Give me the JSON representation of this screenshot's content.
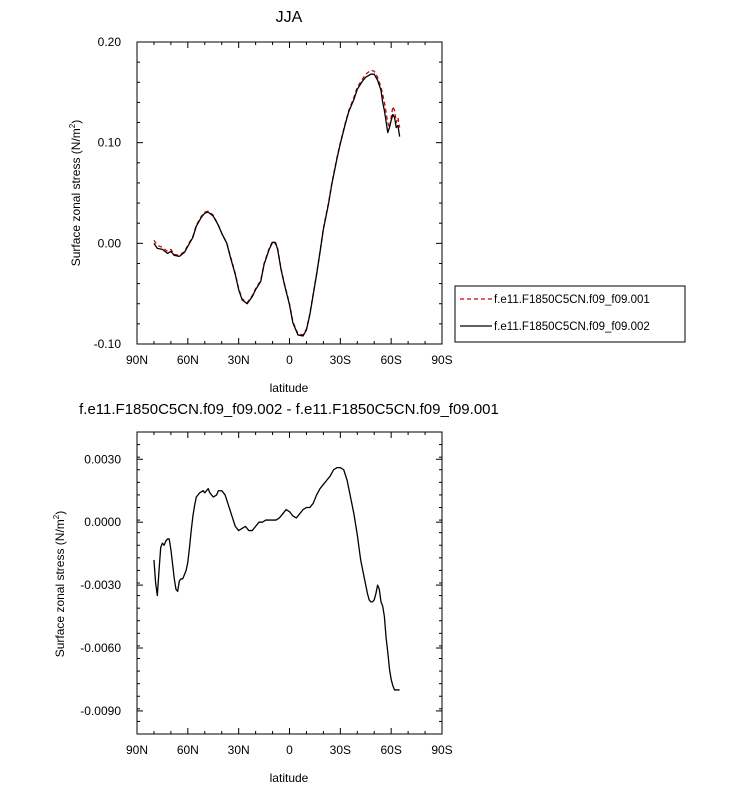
{
  "chart_data": [
    {
      "type": "line",
      "title": "JJA",
      "xlabel": "latitude",
      "ylabel": "Surface zonal stress (N/m",
      "ylabel_sup": "2",
      "ylabel_close": ")",
      "xlim": [
        90,
        -90
      ],
      "ylim": [
        -0.1,
        0.2
      ],
      "xticks": [
        90,
        60,
        30,
        0,
        -30,
        -60,
        -90
      ],
      "xtick_labels": [
        "90N",
        "60N",
        "30N",
        "0",
        "30S",
        "60S",
        "90S"
      ],
      "yticks": [
        -0.1,
        0.0,
        0.1,
        0.2
      ],
      "ytick_labels": [
        "-0.10",
        "0.00",
        "0.10",
        "0.20"
      ],
      "legend": "right",
      "series": [
        {
          "name": "f.e11.F1850C5CN.f09_f09.001",
          "color": "#cc0000",
          "dash": "dashed",
          "x": [
            80,
            78,
            75,
            72,
            70,
            68,
            65,
            62,
            60,
            57,
            55,
            52,
            50,
            48,
            45,
            42,
            40,
            37,
            35,
            32,
            30,
            28,
            25,
            22,
            20,
            17,
            15,
            12,
            10,
            9,
            8,
            7,
            5,
            3,
            0,
            -2,
            -5,
            -8,
            -10,
            -12,
            -14,
            -16,
            -18,
            -20,
            -23,
            -25,
            -28,
            -30,
            -33,
            -35,
            -38,
            -40,
            -43,
            -45,
            -48,
            -50,
            -52,
            -54,
            -55,
            -56,
            -58,
            -59,
            -60,
            -61,
            -62,
            -63,
            -64,
            -65
          ],
          "y": [
            0.003,
            -0.002,
            -0.004,
            -0.008,
            -0.006,
            -0.011,
            -0.012,
            -0.008,
            -0.002,
            0.007,
            0.018,
            0.027,
            0.031,
            0.032,
            0.028,
            0.018,
            0.01,
            0.0,
            -0.012,
            -0.03,
            -0.045,
            -0.055,
            -0.059,
            -0.052,
            -0.045,
            -0.037,
            -0.02,
            -0.005,
            0.002,
            0.002,
            0.0,
            -0.005,
            -0.025,
            -0.04,
            -0.06,
            -0.078,
            -0.09,
            -0.091,
            -0.085,
            -0.07,
            -0.05,
            -0.03,
            -0.008,
            0.015,
            0.04,
            0.06,
            0.085,
            0.1,
            0.12,
            0.132,
            0.145,
            0.155,
            0.163,
            0.168,
            0.172,
            0.171,
            0.165,
            0.155,
            0.148,
            0.14,
            0.12,
            0.115,
            0.125,
            0.136,
            0.132,
            0.12,
            0.125,
            0.115
          ]
        },
        {
          "name": "f.e11.F1850C5CN.f09_f09.002",
          "color": "#000000",
          "dash": "solid",
          "x": [
            80,
            78,
            75,
            72,
            70,
            68,
            65,
            62,
            60,
            57,
            55,
            52,
            50,
            48,
            45,
            42,
            40,
            37,
            35,
            32,
            30,
            28,
            25,
            22,
            20,
            17,
            15,
            12,
            10,
            9,
            8,
            7,
            5,
            3,
            0,
            -2,
            -5,
            -8,
            -10,
            -12,
            -14,
            -16,
            -18,
            -20,
            -23,
            -25,
            -28,
            -30,
            -33,
            -35,
            -38,
            -40,
            -43,
            -45,
            -48,
            -50,
            -52,
            -54,
            -55,
            -56,
            -58,
            -59,
            -60,
            -61,
            -62,
            -63,
            -64,
            -65
          ],
          "y": [
            0.0,
            -0.005,
            -0.006,
            -0.01,
            -0.008,
            -0.012,
            -0.013,
            -0.009,
            -0.003,
            0.006,
            0.017,
            0.026,
            0.03,
            0.031,
            0.027,
            0.018,
            0.01,
            0.0,
            -0.013,
            -0.031,
            -0.046,
            -0.056,
            -0.06,
            -0.053,
            -0.046,
            -0.038,
            -0.021,
            -0.006,
            0.001,
            0.001,
            -0.001,
            -0.006,
            -0.026,
            -0.041,
            -0.061,
            -0.079,
            -0.091,
            -0.092,
            -0.086,
            -0.071,
            -0.051,
            -0.031,
            -0.009,
            0.014,
            0.039,
            0.059,
            0.084,
            0.099,
            0.119,
            0.131,
            0.143,
            0.153,
            0.161,
            0.165,
            0.168,
            0.168,
            0.162,
            0.152,
            0.14,
            0.132,
            0.11,
            0.115,
            0.122,
            0.128,
            0.125,
            0.115,
            0.117,
            0.106
          ]
        }
      ]
    },
    {
      "type": "line",
      "title": "f.e11.F1850C5CN.f09_f09.002 - f.e11.F1850C5CN.f09_f09.001",
      "xlabel": "latitude",
      "ylabel": "Surface zonal stress (N/m",
      "ylabel_sup": "2",
      "ylabel_close": ")",
      "xlim": [
        90,
        -90
      ],
      "ylim": [
        -0.0101,
        0.0043
      ],
      "xticks": [
        90,
        60,
        30,
        0,
        -30,
        -60,
        -90
      ],
      "xtick_labels": [
        "90N",
        "60N",
        "30N",
        "0",
        "30S",
        "60S",
        "90S"
      ],
      "yticks": [
        -0.009,
        -0.006,
        -0.003,
        0.0,
        0.003
      ],
      "ytick_labels": [
        "-0.0090",
        "-0.0060",
        "-0.0030",
        "0.0000",
        "0.0030"
      ],
      "series": [
        {
          "name": "",
          "color": "#000000",
          "dash": "solid",
          "x": [
            80,
            79,
            78,
            77,
            76,
            75,
            74,
            73,
            72,
            71,
            70,
            69,
            68,
            67,
            66,
            65,
            64,
            63,
            62,
            61,
            60,
            59,
            58,
            57,
            56,
            55,
            53,
            51,
            50,
            48,
            47,
            45,
            43,
            42,
            40,
            38,
            36,
            34,
            32,
            30,
            28,
            26,
            24,
            22,
            20,
            18,
            16,
            14,
            12,
            10,
            8,
            6,
            4,
            2,
            0,
            -2,
            -4,
            -6,
            -8,
            -10,
            -12,
            -14,
            -16,
            -18,
            -20,
            -22,
            -24,
            -26,
            -28,
            -30,
            -32,
            -34,
            -36,
            -38,
            -39,
            -40,
            -41,
            -42,
            -43,
            -44,
            -45,
            -46,
            -47,
            -48,
            -49,
            -50,
            -51,
            -52,
            -53,
            -54,
            -55,
            -56,
            -57,
            -58,
            -59,
            -60,
            -61,
            -62,
            -63,
            -64,
            -65
          ],
          "y": [
            -0.0018,
            -0.0029,
            -0.0035,
            -0.0023,
            -0.0012,
            -0.001,
            -0.0011,
            -0.0009,
            -0.0008,
            -0.0008,
            -0.0013,
            -0.002,
            -0.0027,
            -0.0032,
            -0.0033,
            -0.0028,
            -0.0027,
            -0.0027,
            -0.0025,
            -0.0023,
            -0.0019,
            -0.0012,
            -0.0004,
            0.0003,
            0.0008,
            0.0012,
            0.0014,
            0.0015,
            0.0014,
            0.0016,
            0.0014,
            0.0012,
            0.0013,
            0.0015,
            0.0015,
            0.0013,
            0.0008,
            0.0003,
            -0.0002,
            -0.0004,
            -0.0003,
            -0.0002,
            -0.0004,
            -0.0004,
            -0.0002,
            0.0,
            0.0,
            0.0001,
            0.0001,
            0.0001,
            0.0001,
            0.0002,
            0.0004,
            0.0006,
            0.0005,
            0.0003,
            0.0002,
            0.0004,
            0.0006,
            0.0007,
            0.0007,
            0.0009,
            0.0013,
            0.0016,
            0.0018,
            0.002,
            0.0022,
            0.0025,
            0.0026,
            0.0026,
            0.0025,
            0.002,
            0.0012,
            0.0004,
            -0.0001,
            -0.0006,
            -0.0012,
            -0.0018,
            -0.0022,
            -0.0026,
            -0.003,
            -0.0034,
            -0.0037,
            -0.0038,
            -0.0038,
            -0.0037,
            -0.0034,
            -0.003,
            -0.0032,
            -0.0038,
            -0.004,
            -0.0045,
            -0.0055,
            -0.0062,
            -0.007,
            -0.0075,
            -0.0078,
            -0.008,
            -0.008,
            -0.008,
            -0.008
          ]
        }
      ]
    }
  ]
}
